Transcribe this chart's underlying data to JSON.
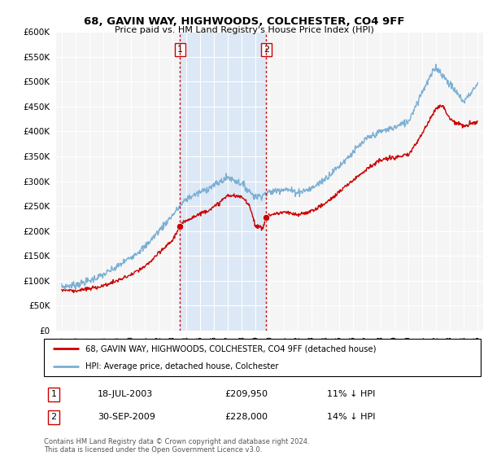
{
  "title": "68, GAVIN WAY, HIGHWOODS, COLCHESTER, CO4 9FF",
  "subtitle": "Price paid vs. HM Land Registry's House Price Index (HPI)",
  "legend_line1": "68, GAVIN WAY, HIGHWOODS, COLCHESTER, CO4 9FF (detached house)",
  "legend_line2": "HPI: Average price, detached house, Colchester",
  "table_rows": [
    {
      "num": "1",
      "date": "18-JUL-2003",
      "price": "£209,950",
      "hpi": "11% ↓ HPI"
    },
    {
      "num": "2",
      "date": "30-SEP-2009",
      "price": "£228,000",
      "hpi": "14% ↓ HPI"
    }
  ],
  "footer": "Contains HM Land Registry data © Crown copyright and database right 2024.\nThis data is licensed under the Open Government Licence v3.0.",
  "vline1_x": 2003.54,
  "vline2_x": 2009.75,
  "sold_marker1_x": 2003.54,
  "sold_marker1_y": 209950,
  "sold_marker2_x": 2009.75,
  "sold_marker2_y": 228000,
  "price_color": "#cc0000",
  "hpi_color": "#7bafd4",
  "vline_color": "#cc0000",
  "shade_color": "#dce8f5",
  "ylim": [
    0,
    600000
  ],
  "yticks": [
    0,
    50000,
    100000,
    150000,
    200000,
    250000,
    300000,
    350000,
    400000,
    450000,
    500000,
    550000,
    600000
  ],
  "xlim_left": 1994.6,
  "xlim_right": 2025.4,
  "background_color": "#f5f5f5"
}
